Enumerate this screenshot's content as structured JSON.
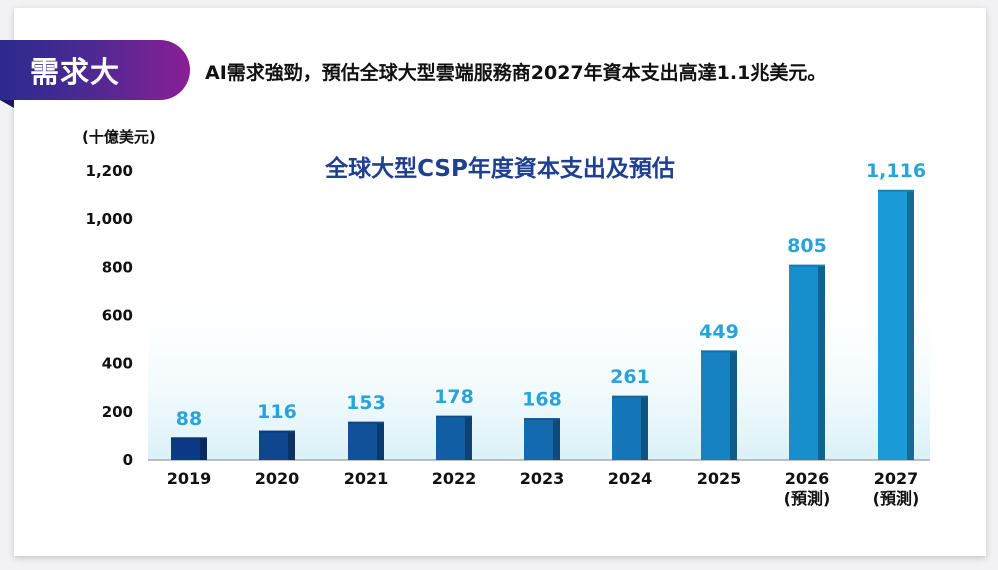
{
  "banner": {
    "tag": "需求大",
    "headline": "AI需求強勁，預估全球大型雲端服務商2027年資本支出高達1.1兆美元。"
  },
  "chart_data": {
    "type": "bar",
    "title": "全球大型CSP年度資本支出及預估",
    "unit_label": "(十億美元)",
    "categories": [
      "2019",
      "2020",
      "2021",
      "2022",
      "2023",
      "2024",
      "2025",
      "2026",
      "2027"
    ],
    "category_notes": [
      "",
      "",
      "",
      "",
      "",
      "",
      "",
      "(預測)",
      "(預測)"
    ],
    "values": [
      88,
      116,
      153,
      178,
      168,
      261,
      449,
      805,
      1116
    ],
    "value_labels": [
      "88",
      "116",
      "153",
      "178",
      "168",
      "261",
      "449",
      "805",
      "1,116"
    ],
    "ylim": [
      0,
      1200
    ],
    "yticks": [
      0,
      200,
      400,
      600,
      800,
      1000,
      1200
    ],
    "ytick_labels": [
      "0",
      "200",
      "400",
      "600",
      "800",
      "1,000",
      "1,200"
    ],
    "colors": {
      "bar_start": "#0d3a86",
      "bar_end": "#1a9ad6",
      "value_label": "#2aa3d8",
      "title": "#1f3f8f"
    }
  }
}
